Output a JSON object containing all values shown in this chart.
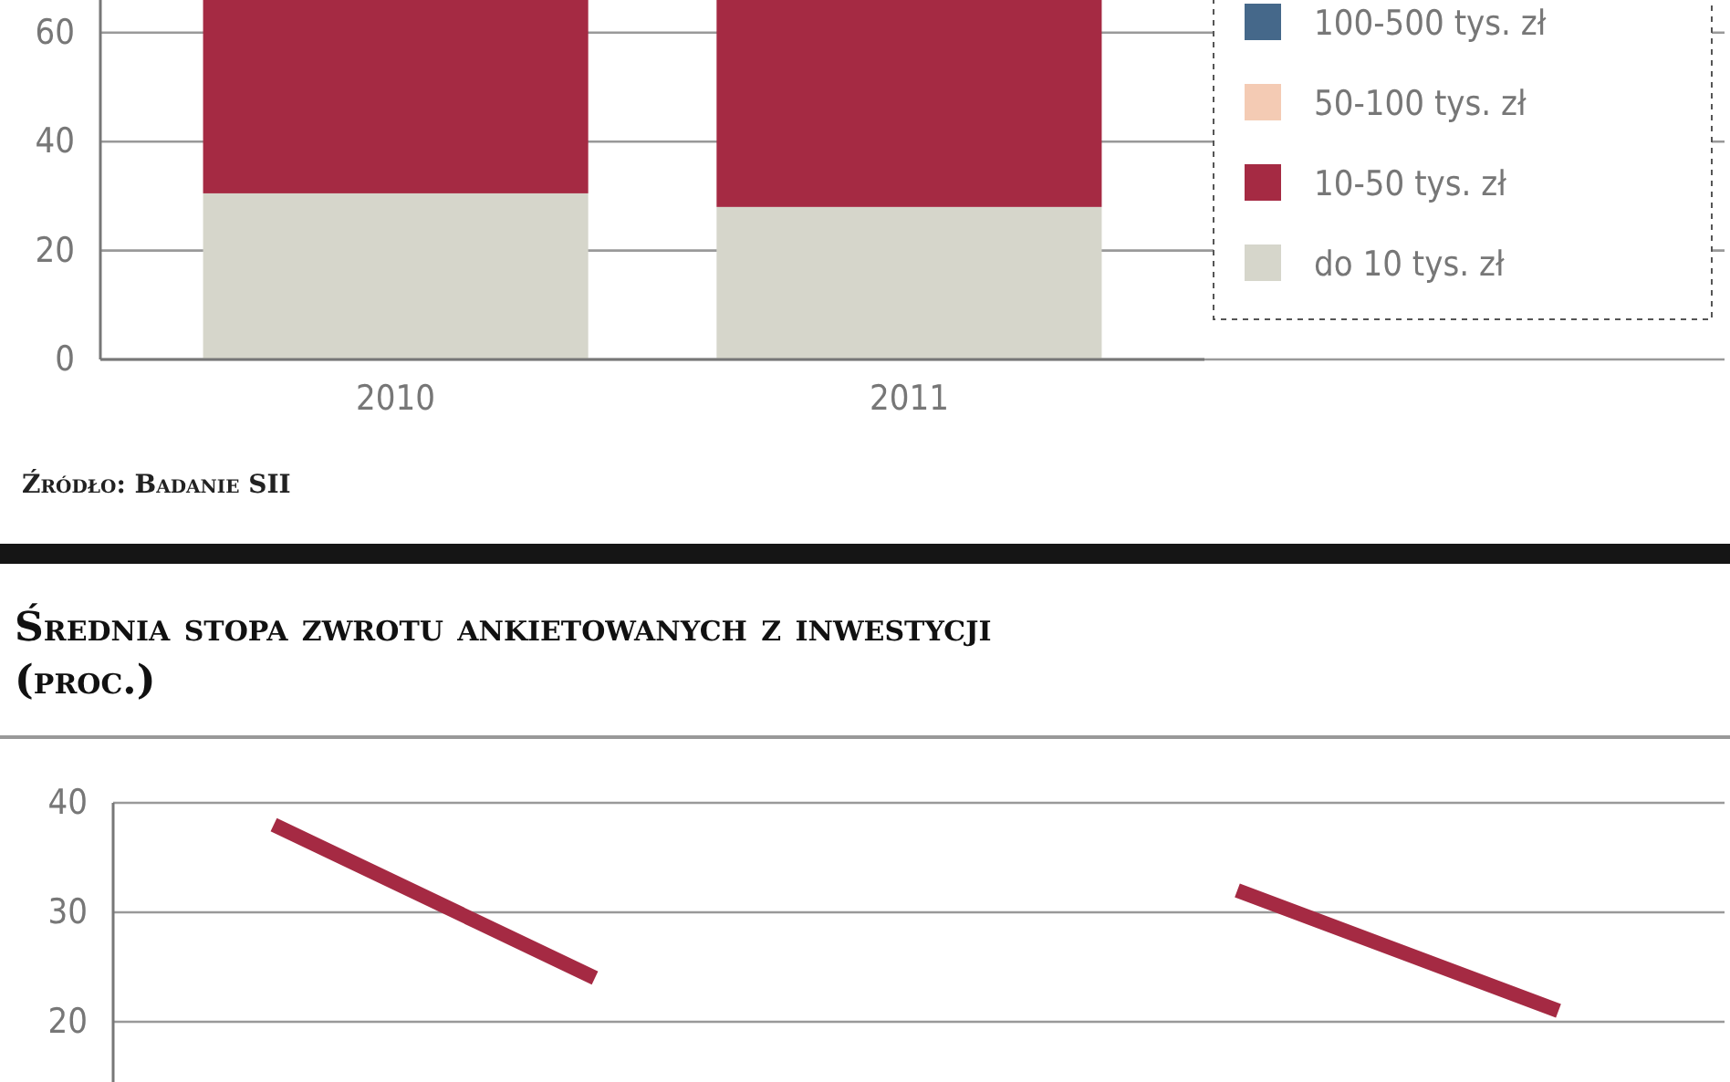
{
  "chart_data": [
    {
      "type": "bar",
      "stacked": true,
      "categories": [
        "2010",
        "2011"
      ],
      "series": [
        {
          "name": "do 10 tys. zł",
          "color": "#d6d6cb",
          "values": [
            30.5,
            28
          ]
        },
        {
          "name": "10-50 tys. zł",
          "color": "#a52a43",
          "values": [
            35.5,
            38
          ]
        },
        {
          "name": "50-100 tys. zł",
          "color": "#f4cbb4",
          "values": [
            null,
            null
          ]
        },
        {
          "name": "100-500 tys. zł",
          "color": "#45688a",
          "values": [
            null,
            null
          ]
        }
      ],
      "ylim": [
        0,
        66
      ],
      "yticks": [
        0,
        20,
        40,
        60
      ],
      "grid": "y",
      "legend": "top right",
      "annotations": [
        "Źródło: Badanie SII"
      ]
    },
    {
      "type": "line",
      "title": "Średnia stopa zwrotu ankietowanych z inwestycji (proc.)",
      "categories": [
        null,
        null,
        null,
        null,
        null
      ],
      "series": [
        {
          "color": "#a52a43",
          "values": [
            38,
            24,
            null,
            32,
            21
          ]
        }
      ],
      "ylim": [
        14.5,
        40
      ],
      "yticks": [
        20,
        30,
        40
      ],
      "grid": "y",
      "marker": "none",
      "line_style": "solid"
    }
  ]
}
